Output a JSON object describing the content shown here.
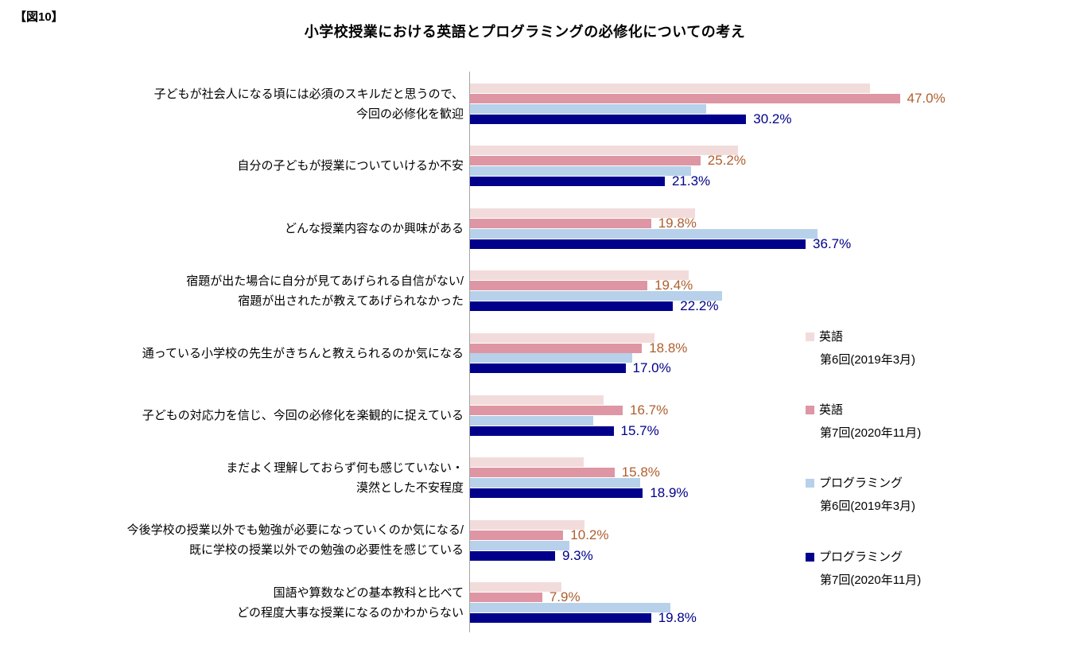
{
  "figure_label": "【図10】",
  "title": "小学校授業における英語とプログラミングの必修化についての考え",
  "colors": {
    "axis": "#A6A6A6",
    "english_r6": "#F2DCDB",
    "english_r7": "#DE96A4",
    "programming_r6": "#B7D1EA",
    "programming_r7": "#00008B",
    "english_value_label": "#AE5E2E",
    "programming_value_label": "#00008B"
  },
  "legend": [
    {
      "name": "英語",
      "round": "第6回(2019年3月)",
      "color": "#F2DCDB"
    },
    {
      "name": "英語",
      "round": "第7回(2020年11月)",
      "color": "#DE96A4"
    },
    {
      "name": "プログラミング",
      "round": "第6回(2019年3月)",
      "color": "#B7D1EA"
    },
    {
      "name": "プログラミング",
      "round": "第7回(2020年11月)",
      "color": "#00008B"
    }
  ],
  "chart_data": {
    "type": "bar",
    "orientation": "horizontal",
    "title": "小学校授業における英語とプログラミングの必修化についての考え",
    "value_unit": "%",
    "xlim": [
      0,
      50
    ],
    "grid": false,
    "legend_position": "right",
    "categories": [
      [
        "子どもが社会人になる頃には必須のスキルだと思うので、",
        "今回の必修化を歓迎"
      ],
      [
        "自分の子どもが授業についていけるか不安"
      ],
      [
        "どんな授業内容なのか興味がある"
      ],
      [
        "宿題が出た場合に自分が見てあげられる自信がない/",
        "宿題が出されたが教えてあげられなかった"
      ],
      [
        "通っている小学校の先生がきちんと教えられるのか気になる"
      ],
      [
        "子どもの対応力を信じ、今回の必修化を楽観的に捉えている"
      ],
      [
        "まだよく理解しておらず何も感じていない・",
        "漠然とした不安程度"
      ],
      [
        "今後学校の授業以外でも勉強が必要になっていくのか気になる/",
        "既に学校の授業以外での勉強の必要性を感じている"
      ],
      [
        "国語や算数などの基本教科と比べて",
        "どの程度大事な授業になるのかわからない"
      ]
    ],
    "series": [
      {
        "name": "英語 第6回(2019年3月)",
        "color": "#F2DCDB",
        "labels_shown": false,
        "values": [
          43.7,
          29.3,
          24.6,
          23.9,
          20.2,
          14.6,
          12.4,
          12.5,
          10.0
        ]
      },
      {
        "name": "英語 第7回(2020年11月)",
        "color": "#DE96A4",
        "labels_shown": true,
        "label_color": "#AE5E2E",
        "values": [
          47.0,
          25.2,
          19.8,
          19.4,
          18.8,
          16.7,
          15.8,
          10.2,
          7.9
        ]
      },
      {
        "name": "プログラミング 第6回(2019年3月)",
        "color": "#B7D1EA",
        "labels_shown": false,
        "values": [
          25.8,
          24.2,
          38.0,
          27.6,
          17.7,
          13.5,
          18.6,
          10.9,
          21.9
        ]
      },
      {
        "name": "プログラミング 第7回(2020年11月)",
        "color": "#00008B",
        "labels_shown": true,
        "label_color": "#00008B",
        "values": [
          30.2,
          21.3,
          36.7,
          22.2,
          17.0,
          15.7,
          18.9,
          9.3,
          19.8
        ]
      }
    ]
  }
}
